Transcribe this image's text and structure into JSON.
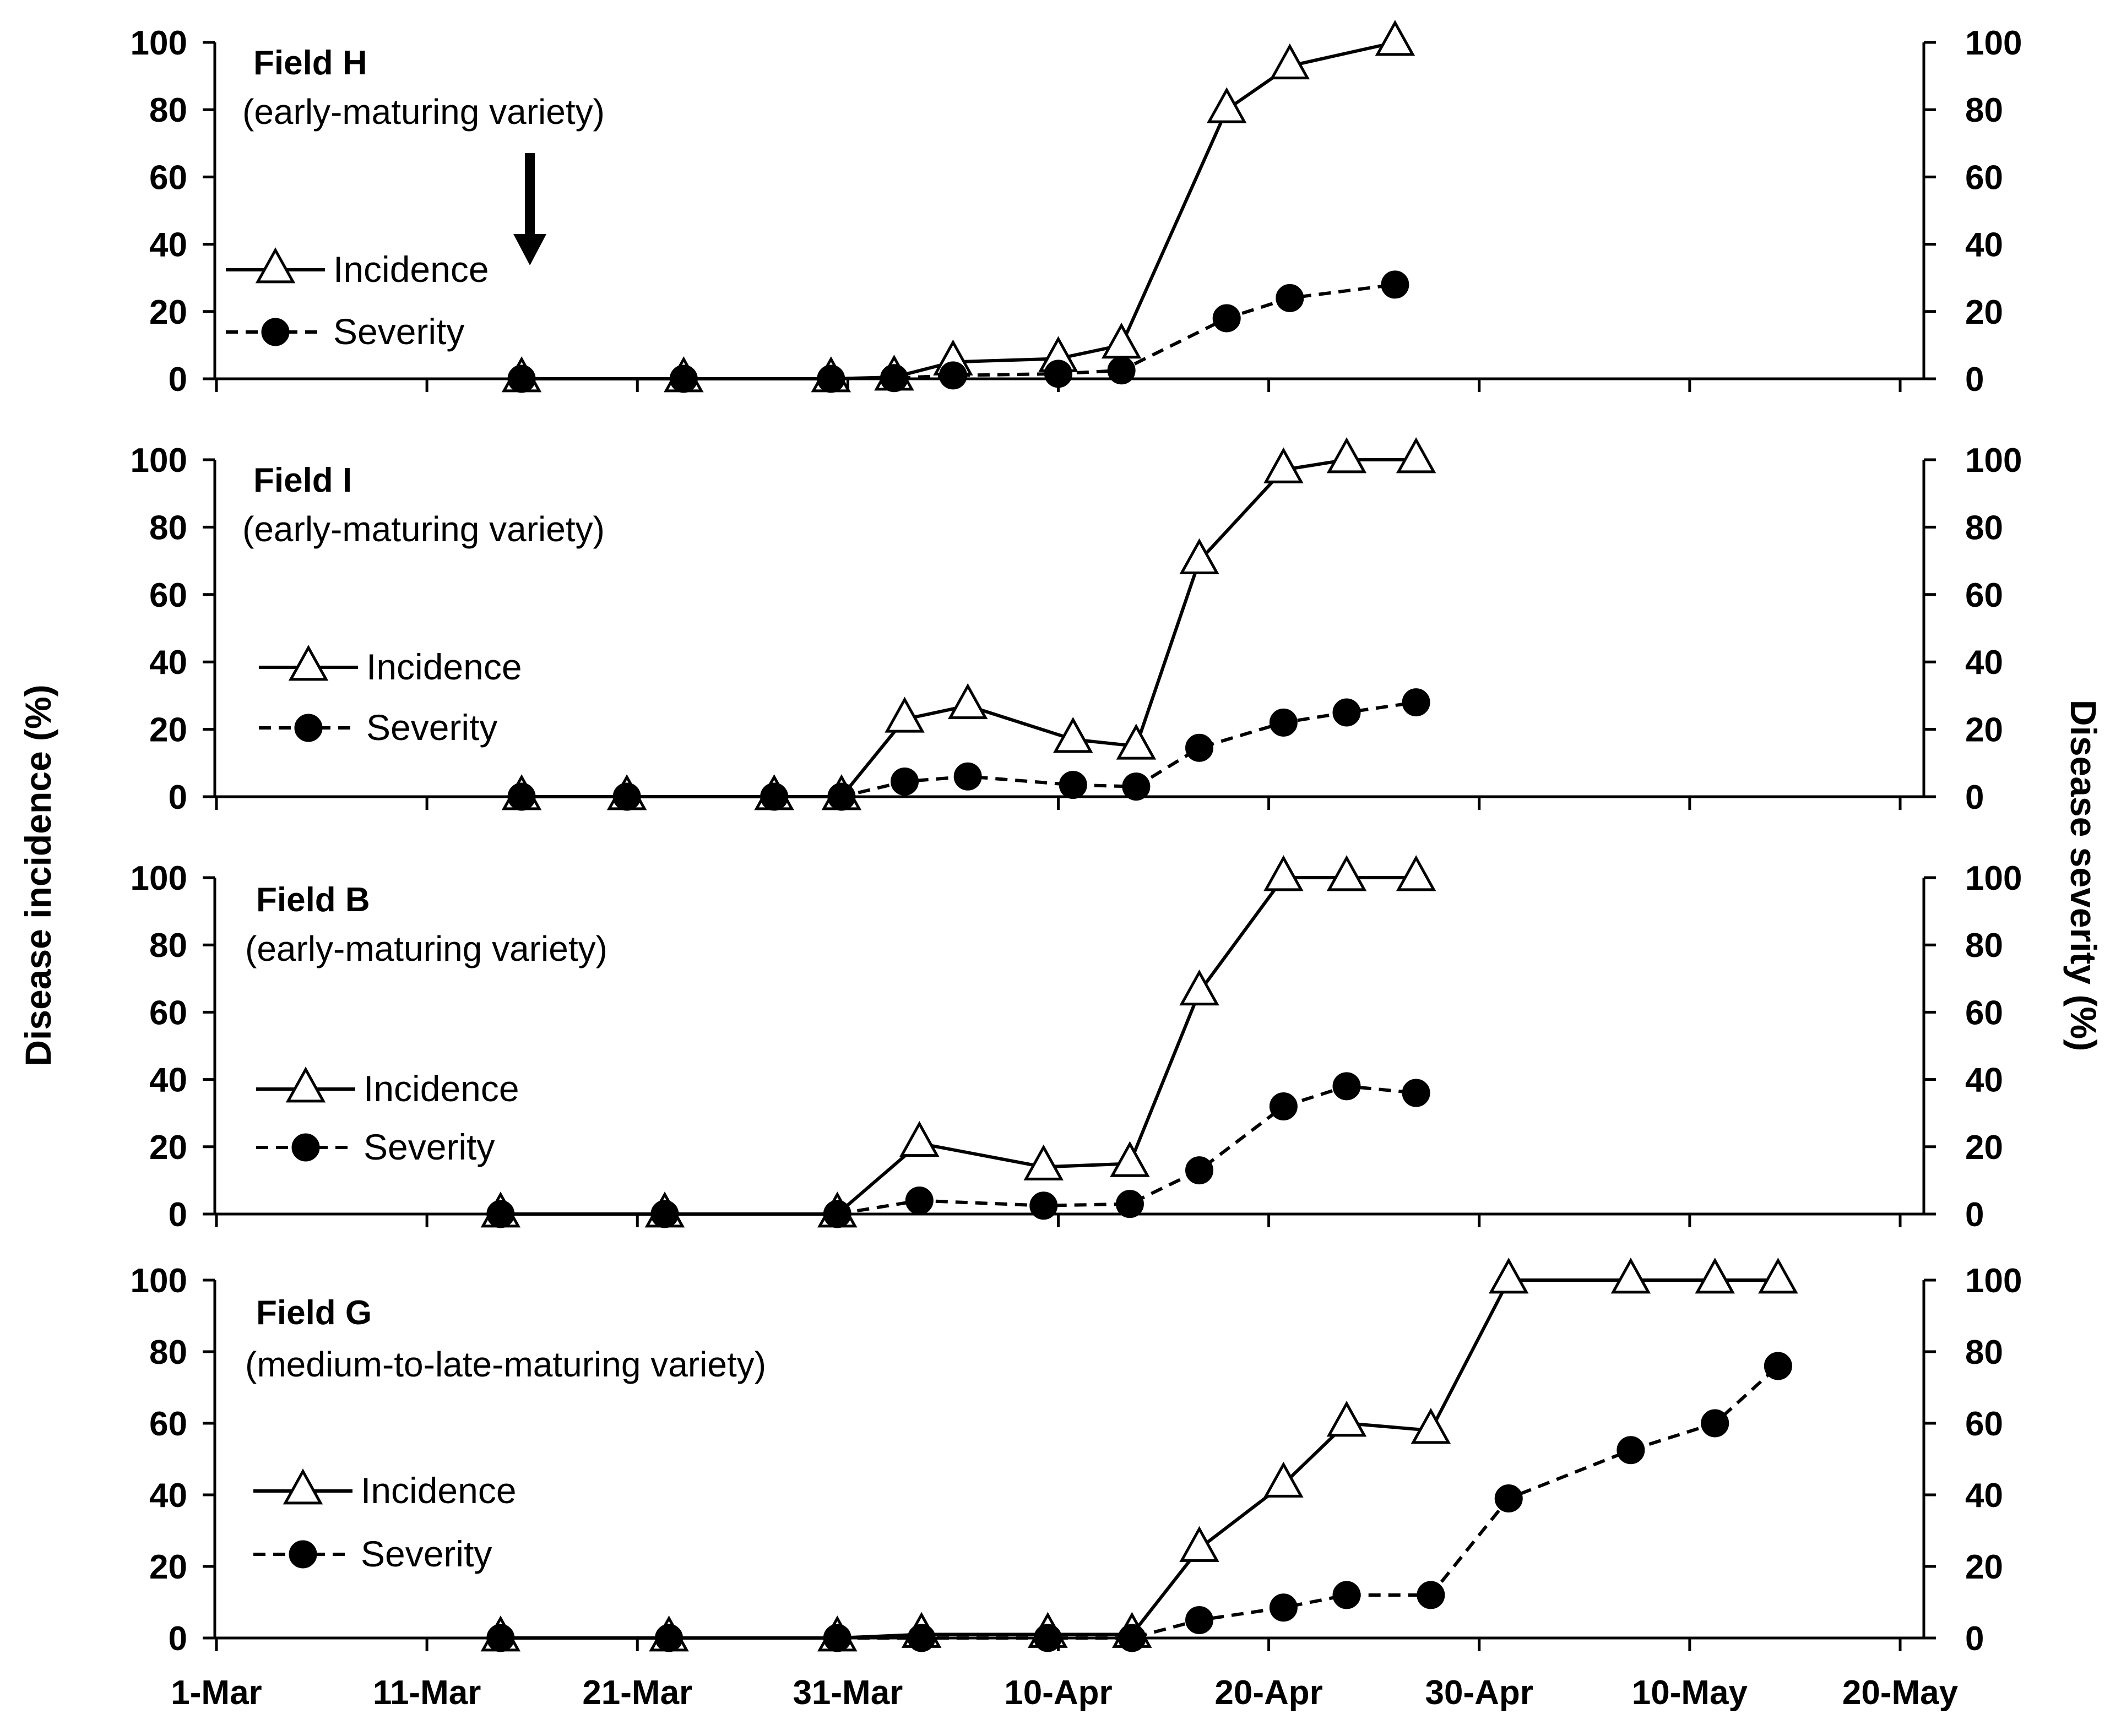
{
  "chart_data": {
    "type": "line",
    "y_left_label": "Disease incidence (%)",
    "y_right_label": "Disease severity (%)",
    "x_tick_labels": [
      "1-Mar",
      "11-Mar",
      "21-Mar",
      "31-Mar",
      "10-Apr",
      "20-Apr",
      "30-Apr",
      "10-May",
      "20-May"
    ],
    "x_tick_days": [
      0,
      10,
      20,
      30,
      40,
      50,
      60,
      70,
      80
    ],
    "x_range_days": [
      0,
      80
    ],
    "x_day_zero": "1-Mar",
    "y_range": [
      0,
      100
    ],
    "y_ticks": [
      0,
      20,
      40,
      60,
      80,
      100
    ],
    "y_tick_labels": [
      "0",
      "20",
      "40",
      "60",
      "80",
      "100"
    ],
    "legend": {
      "incidence": "Incidence",
      "severity": "Severity"
    },
    "colors": {
      "line": "#000000",
      "triangle_fill": "#ffffff",
      "circle_fill": "#000000",
      "background": "#ffffff"
    },
    "panels": [
      {
        "title": "Field H",
        "subtitle": "(early-maturing variety)",
        "arrow_day": 14.5,
        "series": [
          {
            "name": "Incidence",
            "marker": "triangle",
            "line": "solid",
            "x": [
              14.5,
              22.2,
              29.2,
              32.2,
              35,
              40,
              43,
              48,
              51,
              56
            ],
            "y": [
              0,
              0,
              0,
              0.5,
              5,
              6,
              10,
              80,
              93,
              100
            ]
          },
          {
            "name": "Severity",
            "marker": "circle",
            "line": "dashed",
            "x": [
              14.5,
              22.2,
              29.2,
              32.2,
              35,
              40,
              43,
              48,
              51,
              56
            ],
            "y": [
              0,
              0,
              0,
              0.2,
              1,
              1.5,
              2.5,
              18,
              24,
              28
            ]
          }
        ]
      },
      {
        "title": "Field I",
        "subtitle": "(early-maturing variety)",
        "series": [
          {
            "name": "Incidence",
            "marker": "triangle",
            "line": "solid",
            "x": [
              14.5,
              19.5,
              26.5,
              29.7,
              32.7,
              35.7,
              40.7,
              43.7,
              46.7,
              50.7,
              53.7,
              57
            ],
            "y": [
              0,
              0,
              0,
              0,
              23,
              27,
              17,
              15,
              70,
              97,
              100,
              100
            ]
          },
          {
            "name": "Severity",
            "marker": "circle",
            "line": "dashed",
            "x": [
              14.5,
              19.5,
              26.5,
              29.7,
              32.7,
              35.7,
              40.7,
              43.7,
              46.7,
              50.7,
              53.7,
              57
            ],
            "y": [
              0,
              0,
              0,
              0,
              4.5,
              6,
              3.5,
              3,
              14.5,
              22,
              25,
              28
            ]
          }
        ]
      },
      {
        "title": "Field B",
        "subtitle": "(early-maturing variety)",
        "series": [
          {
            "name": "Incidence",
            "marker": "triangle",
            "line": "solid",
            "x": [
              13.5,
              21.3,
              29.5,
              33.4,
              39.3,
              43.4,
              46.7,
              50.7,
              53.7,
              57
            ],
            "y": [
              0,
              0,
              0,
              21,
              14,
              15,
              66,
              100,
              100,
              100
            ]
          },
          {
            "name": "Severity",
            "marker": "circle",
            "line": "dashed",
            "x": [
              13.5,
              21.3,
              29.5,
              33.4,
              39.3,
              43.4,
              46.7,
              50.7,
              53.7,
              57
            ],
            "y": [
              0,
              0,
              0,
              4,
              2.5,
              3,
              13,
              32,
              38,
              36
            ]
          }
        ]
      },
      {
        "title": "Field G",
        "subtitle": "(medium-to-late-maturing variety)",
        "series": [
          {
            "name": "Incidence",
            "marker": "triangle",
            "line": "solid",
            "x": [
              13.5,
              21.5,
              29.5,
              33.5,
              39.5,
              43.5,
              46.7,
              50.7,
              53.7,
              57.7,
              61.4,
              67.2,
              71.2,
              74.2
            ],
            "y": [
              0,
              0,
              0,
              1,
              1,
              1,
              25,
              43,
              60,
              58,
              100,
              100,
              100,
              100
            ]
          },
          {
            "name": "Severity",
            "marker": "circle",
            "line": "dashed",
            "x": [
              13.5,
              21.5,
              29.5,
              33.5,
              39.5,
              43.5,
              46.7,
              50.7,
              53.7,
              57.7,
              61.4,
              67.2,
              71.2,
              74.2
            ],
            "y": [
              0,
              0,
              0,
              0,
              0,
              0,
              5,
              8.5,
              12,
              12,
              39,
              52.5,
              60,
              76
            ]
          }
        ]
      }
    ]
  }
}
